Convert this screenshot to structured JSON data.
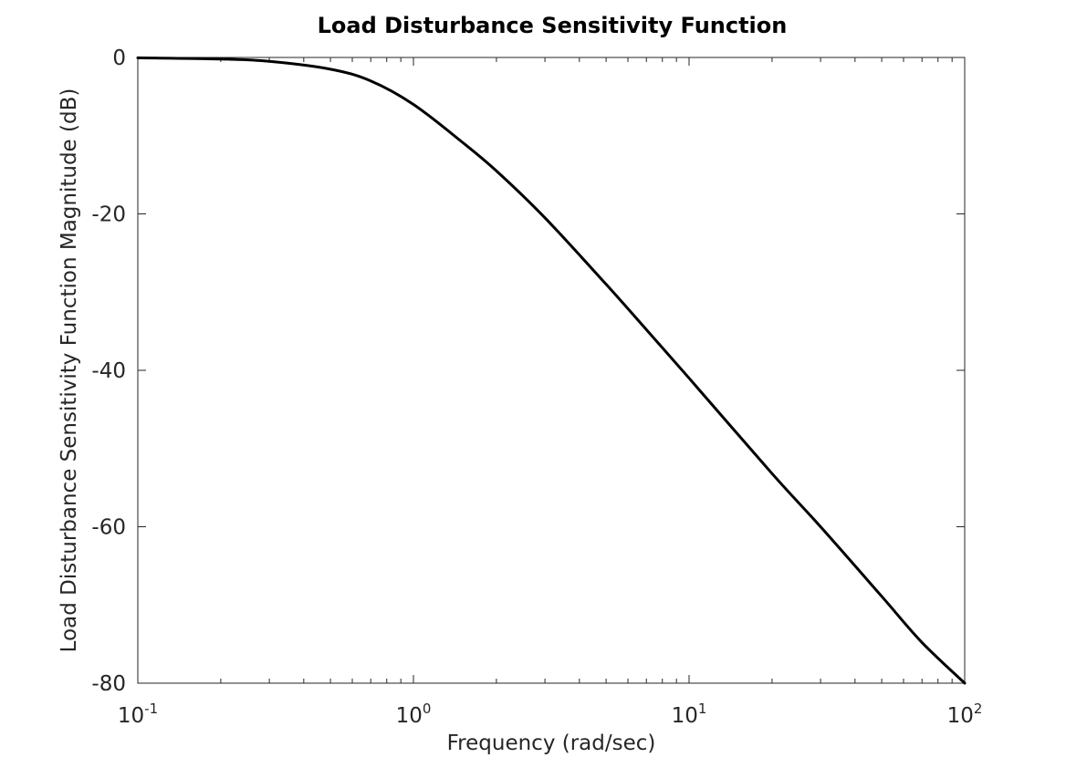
{
  "chart_data": {
    "type": "line",
    "title": "Load Disturbance Sensitivity Function",
    "xlabel": "Frequency (rad/sec)",
    "ylabel": "Load Disturbance Sensitivity Function Magnitude (dB)",
    "xscale": "log",
    "xlim": [
      0.1,
      100
    ],
    "ylim": [
      -80,
      0
    ],
    "grid": false,
    "line_color": "#000000",
    "x_ticks": [
      {
        "base": "10",
        "exp": "-1",
        "value": 0.1
      },
      {
        "base": "10",
        "exp": "0",
        "value": 1
      },
      {
        "base": "10",
        "exp": "1",
        "value": 10
      },
      {
        "base": "10",
        "exp": "2",
        "value": 100
      }
    ],
    "y_ticks": [
      {
        "label": "0",
        "value": 0
      },
      {
        "label": "-20",
        "value": -20
      },
      {
        "label": "-40",
        "value": -40
      },
      {
        "label": "-60",
        "value": -60
      },
      {
        "label": "-80",
        "value": -80
      }
    ],
    "series": [
      {
        "x": [
          0.1,
          0.2,
          0.3,
          0.5,
          0.7,
          1.0,
          1.5,
          2.0,
          3.0,
          5.0,
          7.0,
          10,
          20,
          30,
          50,
          70,
          100
        ],
        "values": [
          -0.04,
          -0.2,
          -0.5,
          -1.5,
          -3.0,
          -6.0,
          -10.8,
          -14.5,
          -20.5,
          -29.0,
          -34.8,
          -41.0,
          -53.2,
          -60.0,
          -68.9,
          -74.8,
          -80.0
        ]
      }
    ]
  }
}
